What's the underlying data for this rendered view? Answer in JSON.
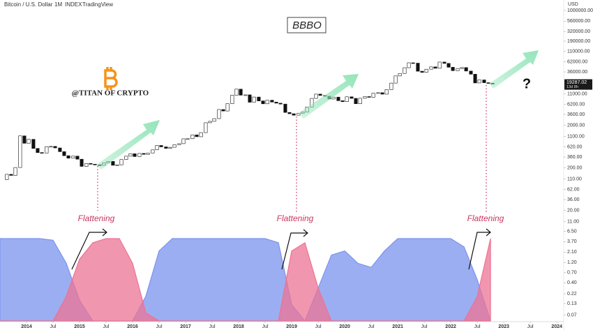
{
  "chart_data": {
    "type": "candlestick",
    "title": "BBBO",
    "header": [
      "Bitcoin / U.S. Dollar",
      "1M",
      "INDEX",
      "TradingView"
    ],
    "currency": "USD",
    "countdown": "13d 8h",
    "annotations": [
      "@TITAN OF CRYPTO",
      "Flattening",
      "Flattening",
      "Flattening",
      "?"
    ],
    "log_scale": true,
    "up_color": "#ffffff",
    "down_color": "#111111",
    "open": 106,
    "x": [
      2013.63,
      2013.71,
      2013.79,
      2013.88,
      2013.96,
      2014.04,
      2014.13,
      2014.21,
      2014.29,
      2014.38,
      2014.46,
      2014.54,
      2014.63,
      2014.71,
      2014.79,
      2014.88,
      2014.96,
      2015.04,
      2015.13,
      2015.21,
      2015.29,
      2015.38,
      2015.46,
      2015.54,
      2015.63,
      2015.71,
      2015.79,
      2015.88,
      2015.96,
      2016.04,
      2016.13,
      2016.21,
      2016.29,
      2016.38,
      2016.46,
      2016.54,
      2016.63,
      2016.71,
      2016.79,
      2016.88,
      2016.96,
      2017.04,
      2017.13,
      2017.21,
      2017.29,
      2017.38,
      2017.46,
      2017.54,
      2017.63,
      2017.71,
      2017.79,
      2017.88,
      2017.96,
      2018.04,
      2018.13,
      2018.21,
      2018.29,
      2018.38,
      2018.46,
      2018.54,
      2018.63,
      2018.71,
      2018.79,
      2018.88,
      2018.96,
      2019.04,
      2019.13,
      2019.21,
      2019.29,
      2019.38,
      2019.46,
      2019.54,
      2019.63,
      2019.71,
      2019.79,
      2019.88,
      2019.96,
      2020.04,
      2020.13,
      2020.21,
      2020.29,
      2020.38,
      2020.46,
      2020.54,
      2020.63,
      2020.71,
      2020.79,
      2020.88,
      2020.96,
      2021.04,
      2021.13,
      2021.21,
      2021.29,
      2021.38,
      2021.46,
      2021.54,
      2021.63,
      2021.71,
      2021.79,
      2021.88,
      2021.96,
      2022.04,
      2022.13,
      2022.21,
      2022.29,
      2022.38,
      2022.46,
      2022.54,
      2022.63,
      2022.71,
      2022.79
    ],
    "close": [
      141,
      133,
      204,
      1130,
      757,
      938,
      573,
      458,
      448,
      630,
      640,
      589,
      481,
      387,
      338,
      378,
      320,
      217,
      254,
      244,
      236,
      230,
      263,
      284,
      230,
      236,
      314,
      377,
      430,
      369,
      437,
      416,
      448,
      531,
      673,
      624,
      575,
      609,
      701,
      742,
      964,
      970,
      1190,
      1080,
      1348,
      2300,
      2480,
      2875,
      4703,
      4338,
      6468,
      10233,
      14156,
      10221,
      10397,
      6973,
      9240,
      7494,
      6404,
      7780,
      7037,
      6625,
      6317,
      4017,
      3743,
      3457,
      3854,
      4105,
      5350,
      8574,
      10817,
      10085,
      9630,
      8293,
      9199,
      7569,
      7193,
      9350,
      8599,
      6424,
      8624,
      9454,
      9137,
      11323,
      11680,
      10784,
      13804,
      19625,
      28949,
      33114,
      45137,
      58918,
      57750,
      37332,
      35040,
      41626,
      47166,
      43790,
      61318,
      57005,
      46306,
      38483,
      43194,
      45538,
      37714,
      31792,
      19785,
      23336,
      20050,
      19431,
      19287.02
    ],
    "xlim": [
      2013.5,
      2024.13
    ],
    "xticks": [
      2014,
      {
        "value": 2014.5,
        "label": "Jul"
      },
      2015,
      {
        "value": 2015.5,
        "label": "Jul"
      },
      2016,
      {
        "value": 2016.5,
        "label": "Jul"
      },
      2017,
      {
        "value": 2017.5,
        "label": "Jul"
      },
      2018,
      {
        "value": 2018.5,
        "label": "Jul"
      },
      2019,
      {
        "value": 2019.5,
        "label": "Jul"
      },
      2020,
      {
        "value": 2020.5,
        "label": "Jul"
      },
      2021,
      {
        "value": 2021.5,
        "label": "Jul"
      },
      2022,
      {
        "value": 2022.5,
        "label": "Jul"
      },
      2023,
      {
        "value": 2023.5,
        "label": "Jul"
      },
      2024
    ],
    "ylim": [
      0.0507,
      1760000
    ],
    "yticks": [
      {
        "value": 1000000,
        "label": "1000000.00"
      },
      {
        "value": 560000,
        "label": "560000.00"
      },
      {
        "value": 320000,
        "label": "320000.00"
      },
      {
        "value": 190000,
        "label": "190000.00"
      },
      {
        "value": 110000,
        "label": "110000.00"
      },
      {
        "value": 62000,
        "label": "62000.00"
      },
      {
        "value": 36000,
        "label": "36000.00"
      },
      {
        "value": 11000,
        "label": "11000.00"
      },
      {
        "value": 6200,
        "label": "6200.00"
      },
      {
        "value": 3600,
        "label": "3600.00"
      },
      {
        "value": 2000,
        "label": "2000.00"
      },
      {
        "value": 1100,
        "label": "1100.00"
      },
      {
        "value": 620,
        "label": "620.00"
      },
      {
        "value": 360,
        "label": "360.00"
      },
      {
        "value": 200,
        "label": "200.00"
      },
      {
        "value": 110,
        "label": "110.00"
      },
      {
        "value": 62,
        "label": "62.00"
      },
      {
        "value": 36,
        "label": "36.00"
      },
      {
        "value": 20,
        "label": "20.00"
      },
      {
        "value": 11,
        "label": "11.00"
      },
      {
        "value": 6.5,
        "label": "6.50"
      },
      {
        "value": 3.7,
        "label": "3.70"
      },
      {
        "value": 2.1,
        "label": "2.10"
      },
      {
        "value": 1.2,
        "label": "1.20"
      },
      {
        "value": 0.7,
        "label": "0.70"
      },
      {
        "value": 0.4,
        "label": "0.40"
      },
      {
        "value": 0.22,
        "label": "0.22"
      },
      {
        "value": 0.13,
        "label": "0.13"
      },
      {
        "value": 0.07,
        "label": "0.07"
      }
    ],
    "indicator": {
      "type": "area",
      "ylim": [
        0,
        100
      ],
      "x": [
        2013.5,
        2013.75,
        2014,
        2014.25,
        2014.5,
        2014.75,
        2015,
        2015.25,
        2015.5,
        2015.75,
        2016,
        2016.25,
        2016.5,
        2016.75,
        2017,
        2017.25,
        2017.5,
        2017.75,
        2018,
        2018.25,
        2018.5,
        2018.75,
        2019,
        2019.25,
        2019.5,
        2019.75,
        2020,
        2020.25,
        2020.5,
        2020.75,
        2021,
        2021.25,
        2021.5,
        2021.75,
        2022,
        2022.25,
        2022.5,
        2022.75
      ],
      "series": [
        {
          "color": "#7b93ee",
          "values": [
            100,
            100,
            100,
            100,
            98,
            70,
            25,
            0,
            0,
            0,
            0,
            30,
            85,
            100,
            100,
            100,
            100,
            100,
            100,
            100,
            100,
            95,
            20,
            0,
            40,
            80,
            85,
            70,
            65,
            85,
            100,
            100,
            100,
            100,
            100,
            90,
            50,
            0
          ]
        },
        {
          "color": "#ec7394",
          "values": [
            0,
            0,
            0,
            0,
            0,
            30,
            75,
            95,
            100,
            100,
            70,
            10,
            0,
            0,
            0,
            0,
            0,
            0,
            0,
            0,
            0,
            0,
            85,
            95,
            40,
            0,
            0,
            0,
            0,
            0,
            0,
            0,
            0,
            0,
            0,
            0,
            30,
            100
          ]
        }
      ]
    }
  }
}
